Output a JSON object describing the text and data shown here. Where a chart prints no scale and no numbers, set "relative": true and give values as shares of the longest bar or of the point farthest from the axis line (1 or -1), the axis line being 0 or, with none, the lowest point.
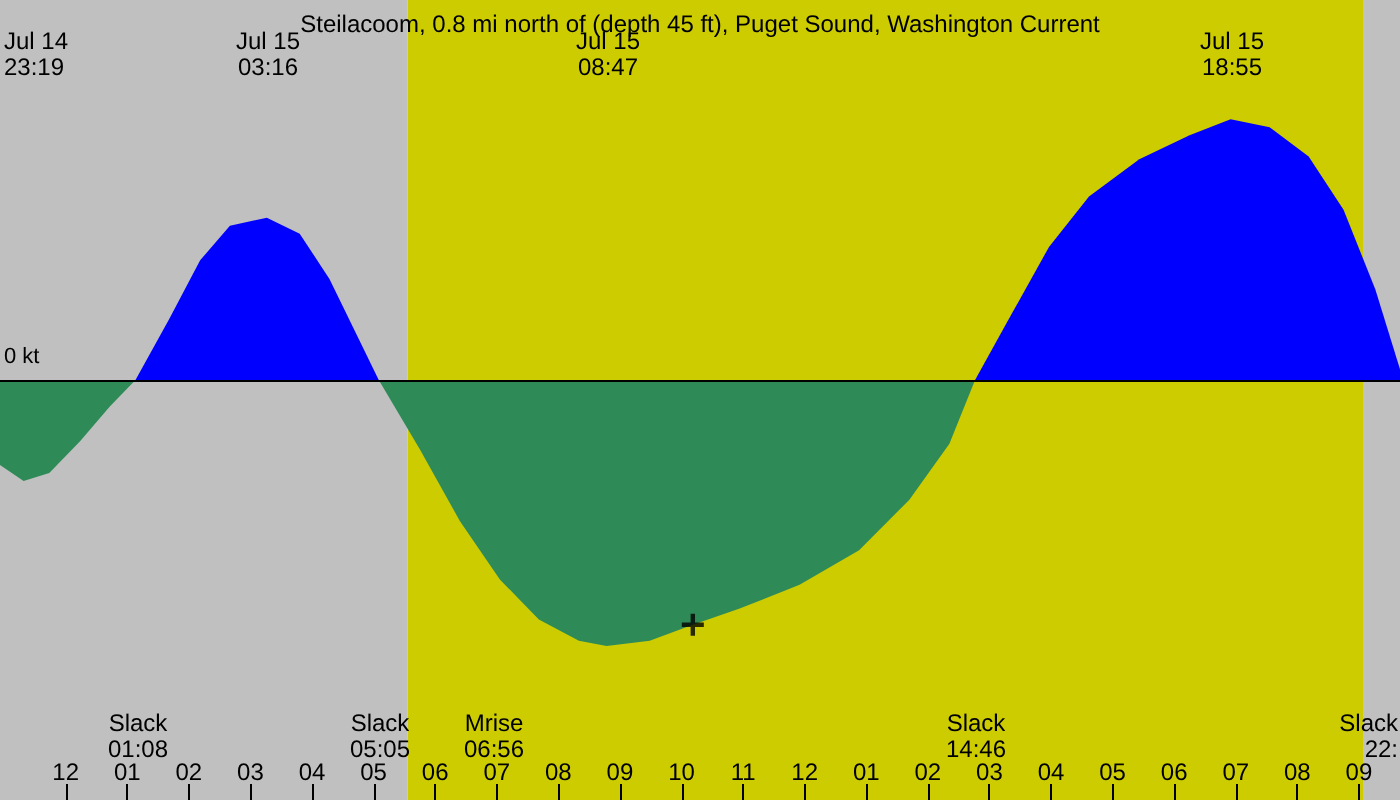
{
  "chart_data": {
    "type": "area",
    "title": "Steilacoom, 0.8 mi north of (depth 45 ft), Puget Sound, Washington Current",
    "relative": true,
    "xlim": [
      "--07-14T22:56",
      "--07-15T21:40"
    ],
    "xticks": [
      {
        "value": "--07-15T00:00",
        "label": "12"
      },
      {
        "value": "--07-15T01:00",
        "label": "01"
      },
      {
        "value": "--07-15T02:00",
        "label": "02"
      },
      {
        "value": "--07-15T03:00",
        "label": "03"
      },
      {
        "value": "--07-15T04:00",
        "label": "04"
      },
      {
        "value": "--07-15T05:00",
        "label": "05"
      },
      {
        "value": "--07-15T06:00",
        "label": "06"
      },
      {
        "value": "--07-15T07:00",
        "label": "07"
      },
      {
        "value": "--07-15T08:00",
        "label": "08"
      },
      {
        "value": "--07-15T09:00",
        "label": "09"
      },
      {
        "value": "--07-15T10:00",
        "label": "10"
      },
      {
        "value": "--07-15T11:00",
        "label": "11"
      },
      {
        "value": "--07-15T12:00",
        "label": "12"
      },
      {
        "value": "--07-15T13:00",
        "label": "01"
      },
      {
        "value": "--07-15T14:00",
        "label": "02"
      },
      {
        "value": "--07-15T15:00",
        "label": "03"
      },
      {
        "value": "--07-15T16:00",
        "label": "04"
      },
      {
        "value": "--07-15T17:00",
        "label": "05"
      },
      {
        "value": "--07-15T18:00",
        "label": "06"
      },
      {
        "value": "--07-15T19:00",
        "label": "07"
      },
      {
        "value": "--07-15T20:00",
        "label": "08"
      },
      {
        "value": "--07-15T21:00",
        "label": "09"
      }
    ],
    "series": [
      {
        "color": "#2e8b57",
        "x": [
          "--07-14T22:56",
          "--07-14T23:19",
          "--07-14T23:44",
          "--07-15T00:14",
          "--07-15T00:43",
          "--07-15T01:08"
        ],
        "values": [
          -0.32,
          -0.38,
          -0.35,
          -0.23,
          -0.1,
          0
        ]
      },
      {
        "color": "#0000ff",
        "x": [
          "--07-15T01:08",
          "--07-15T01:41",
          "--07-15T02:11",
          "--07-15T02:40",
          "--07-15T03:16",
          "--07-15T03:48",
          "--07-15T04:17",
          "--07-15T04:46",
          "--07-15T05:05"
        ],
        "values": [
          0,
          0.23,
          0.45,
          0.58,
          0.61,
          0.55,
          0.38,
          0.15,
          0
        ]
      },
      {
        "color": "#2e8b57",
        "x": [
          "--07-15T05:05",
          "--07-15T05:45",
          "--07-15T06:24",
          "--07-15T07:03",
          "--07-15T07:41",
          "--07-15T08:20",
          "--07-15T08:47",
          "--07-15T09:29",
          "--07-15T10:11",
          "--07-15T10:56",
          "--07-15T11:55",
          "--07-15T12:53",
          "--07-15T13:42",
          "--07-15T14:21",
          "--07-15T14:46"
        ],
        "values": [
          0,
          -0.26,
          -0.53,
          -0.75,
          -0.9,
          -0.98,
          -1,
          -0.98,
          -0.92,
          -0.86,
          -0.77,
          -0.64,
          -0.45,
          -0.24,
          0
        ]
      },
      {
        "color": "#0000ff",
        "x": [
          "--07-15T14:46",
          "--07-15T15:19",
          "--07-15T15:58",
          "--07-15T16:37",
          "--07-15T17:26",
          "--07-15T18:15",
          "--07-15T18:55",
          "--07-15T19:33",
          "--07-15T20:11",
          "--07-15T20:45",
          "--07-15T21:16",
          "--07-15T21:40"
        ],
        "values": [
          0,
          0.23,
          0.5,
          0.69,
          0.83,
          0.92,
          0.98,
          0.95,
          0.84,
          0.64,
          0.34,
          0.04
        ]
      },
      {
        "type": "scatter",
        "color": "#000000",
        "marker": "cross",
        "x": [
          "--07-15T10:11"
        ],
        "values": [
          -0.92
        ]
      }
    ],
    "bands": [
      {
        "axis": "x",
        "from": "--07-14T22:56",
        "to": "--07-15T05:33",
        "color": "#c0c0c0"
      },
      {
        "axis": "x",
        "from": "--07-15T05:33",
        "to": "--07-15T21:04",
        "color": "#cccc00"
      },
      {
        "axis": "x",
        "from": "--07-15T21:04",
        "to": "--07-15T21:40",
        "color": "#c0c0c0"
      }
    ],
    "annotations": [
      "Jul 14\n23:19",
      "Jul 15\n03:16",
      "Jul 15\n08:47",
      "Jul 15\n18:55",
      "Slack\n01:08",
      "Slack\n05:05",
      "Mrise\n06:56",
      "Slack\n14:46",
      "Slack\n22:",
      {
        "text": "0 kt",
        "y": 0
      }
    ]
  }
}
